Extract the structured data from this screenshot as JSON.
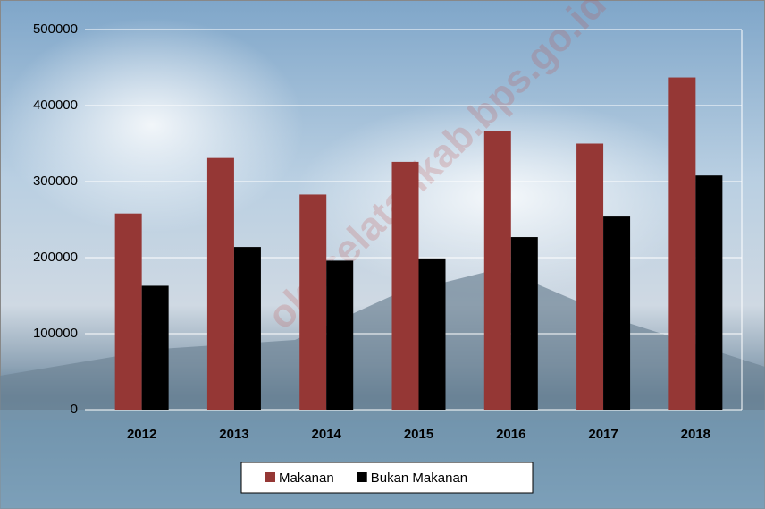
{
  "chart_data": {
    "type": "bar",
    "categories": [
      "2012",
      "2013",
      "2014",
      "2015",
      "2016",
      "2017",
      "2018"
    ],
    "series": [
      {
        "name": "Makanan",
        "color": "#953735",
        "values": [
          258000,
          331000,
          283000,
          326000,
          366000,
          350000,
          437000
        ]
      },
      {
        "name": "Bukan Makanan",
        "color": "#000000",
        "values": [
          163000,
          214000,
          196000,
          199000,
          227000,
          254000,
          308000
        ]
      }
    ],
    "ylim": [
      0,
      500000
    ],
    "yticks": [
      0,
      100000,
      200000,
      300000,
      400000,
      500000
    ],
    "grid": true,
    "legend": "bottom",
    "watermark": "okuselatankab.bps.go.id"
  }
}
